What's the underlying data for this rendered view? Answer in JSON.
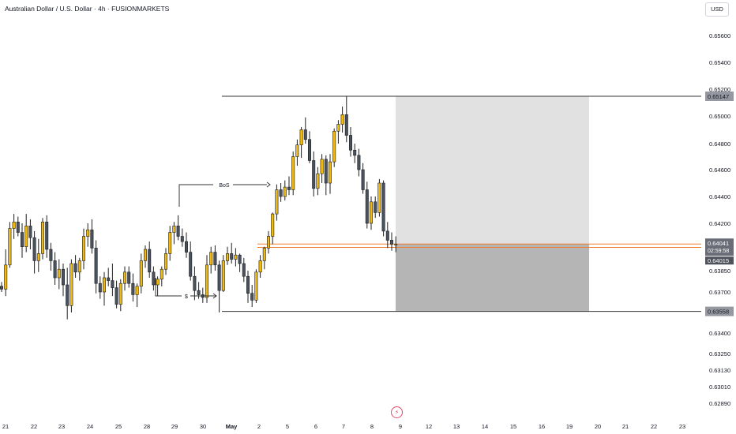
{
  "header": {
    "title": "Australian Dollar / U.S. Dollar · 4h · FUSIONMARKETS",
    "currency": "USD"
  },
  "colors": {
    "up": "#f0b90b",
    "down": "#4a5260",
    "wick": "#1f1f1f",
    "zone_light": "#e1e1e1",
    "zone_dark": "#b5b5b5",
    "orange": "#f07d2e",
    "level": "#333333"
  },
  "icons": {
    "alert": "lightning-bolt-icon"
  },
  "chart_data": {
    "type": "candlestick",
    "title": "Australian Dollar / U.S. Dollar · 4h · FUSIONMARKETS",
    "y_ticks": [
      "0.65600",
      "0.65400",
      "0.65200",
      "0.65000",
      "0.64800",
      "0.64600",
      "0.64400",
      "0.64200",
      "0.64000",
      "0.63850",
      "0.63700",
      "0.63550",
      "0.63400",
      "0.63250",
      "0.63130",
      "0.63010",
      "0.62890"
    ],
    "x_ticks": [
      "21",
      "22",
      "23",
      "24",
      "25",
      "28",
      "29",
      "30",
      "May",
      "2",
      "5",
      "6",
      "7",
      "8",
      "9",
      "12",
      "13",
      "14",
      "15",
      "16",
      "19",
      "20",
      "21",
      "22",
      "23"
    ],
    "price_labels": {
      "high": "0.65147",
      "current": "0.64041",
      "countdown": "02:59:58",
      "mid": "0.64015",
      "low": "0.63558"
    },
    "annotations": {
      "bos": "BoS",
      "sweep": "$"
    },
    "candles": [
      [
        0.6374,
        0.6377,
        0.637,
        0.6372
      ],
      [
        0.6372,
        0.64,
        0.6367,
        0.6389
      ],
      [
        0.6389,
        0.6421,
        0.6387,
        0.6416
      ],
      [
        0.6416,
        0.6427,
        0.6408,
        0.6421
      ],
      [
        0.6421,
        0.6425,
        0.641,
        0.6413
      ],
      [
        0.6413,
        0.642,
        0.6394,
        0.6402
      ],
      [
        0.6402,
        0.6427,
        0.6398,
        0.6418
      ],
      [
        0.6418,
        0.6423,
        0.64,
        0.6409
      ],
      [
        0.6409,
        0.6414,
        0.6383,
        0.6392
      ],
      [
        0.6392,
        0.6408,
        0.6384,
        0.6397
      ],
      [
        0.6397,
        0.6424,
        0.6393,
        0.6421
      ],
      [
        0.6421,
        0.6426,
        0.6394,
        0.64
      ],
      [
        0.64,
        0.6405,
        0.6385,
        0.6392
      ],
      [
        0.6392,
        0.6398,
        0.6375,
        0.638
      ],
      [
        0.638,
        0.6393,
        0.6372,
        0.6386
      ],
      [
        0.6386,
        0.639,
        0.6367,
        0.6375
      ],
      [
        0.6375,
        0.6387,
        0.635,
        0.636
      ],
      [
        0.636,
        0.6393,
        0.6355,
        0.639
      ],
      [
        0.639,
        0.6396,
        0.638,
        0.6384
      ],
      [
        0.6384,
        0.6394,
        0.6378,
        0.6392
      ],
      [
        0.6392,
        0.6416,
        0.6386,
        0.641
      ],
      [
        0.641,
        0.642,
        0.6402,
        0.6415
      ],
      [
        0.6415,
        0.6423,
        0.6397,
        0.6401
      ],
      [
        0.6401,
        0.6407,
        0.6369,
        0.6376
      ],
      [
        0.6376,
        0.6381,
        0.6365,
        0.637
      ],
      [
        0.637,
        0.6384,
        0.636,
        0.638
      ],
      [
        0.638,
        0.6387,
        0.6374,
        0.6378
      ],
      [
        0.6378,
        0.639,
        0.6367,
        0.6373
      ],
      [
        0.6373,
        0.6378,
        0.6358,
        0.6361
      ],
      [
        0.6361,
        0.6379,
        0.6356,
        0.6376
      ],
      [
        0.6376,
        0.6388,
        0.6371,
        0.6384
      ],
      [
        0.6384,
        0.6388,
        0.6373,
        0.6376
      ],
      [
        0.6376,
        0.6383,
        0.6363,
        0.6368
      ],
      [
        0.6368,
        0.6376,
        0.6359,
        0.6374
      ],
      [
        0.6374,
        0.6397,
        0.6369,
        0.6392
      ],
      [
        0.6392,
        0.6403,
        0.6387,
        0.64
      ],
      [
        0.64,
        0.6406,
        0.638,
        0.6384
      ],
      [
        0.6384,
        0.6388,
        0.6371,
        0.6375
      ],
      [
        0.6375,
        0.6381,
        0.6367,
        0.6379
      ],
      [
        0.6379,
        0.6388,
        0.6374,
        0.6386
      ],
      [
        0.6386,
        0.6401,
        0.6382,
        0.6397
      ],
      [
        0.6397,
        0.6418,
        0.6392,
        0.6413
      ],
      [
        0.6413,
        0.6421,
        0.6404,
        0.6418
      ],
      [
        0.6418,
        0.6426,
        0.6407,
        0.641
      ],
      [
        0.641,
        0.6416,
        0.6402,
        0.6406
      ],
      [
        0.6406,
        0.6413,
        0.6394,
        0.6398
      ],
      [
        0.6398,
        0.6406,
        0.6378,
        0.6381
      ],
      [
        0.6381,
        0.6388,
        0.6364,
        0.6371
      ],
      [
        0.6371,
        0.6377,
        0.6365,
        0.6368
      ],
      [
        0.6368,
        0.6373,
        0.6362,
        0.6366
      ],
      [
        0.6366,
        0.6396,
        0.6362,
        0.6389
      ],
      [
        0.6389,
        0.6402,
        0.6383,
        0.6398
      ],
      [
        0.6398,
        0.6403,
        0.6385,
        0.6389
      ],
      [
        0.6389,
        0.6392,
        0.6355,
        0.6371
      ],
      [
        0.6371,
        0.6396,
        0.637,
        0.6392
      ],
      [
        0.6392,
        0.6402,
        0.6389,
        0.6397
      ],
      [
        0.6397,
        0.6405,
        0.639,
        0.6393
      ],
      [
        0.6393,
        0.6401,
        0.6388,
        0.6396
      ],
      [
        0.6396,
        0.6397,
        0.6384,
        0.639
      ],
      [
        0.639,
        0.6394,
        0.6377,
        0.6381
      ],
      [
        0.6381,
        0.6385,
        0.6362,
        0.6369
      ],
      [
        0.6369,
        0.6375,
        0.6359,
        0.6364
      ],
      [
        0.6364,
        0.6386,
        0.6362,
        0.6384
      ],
      [
        0.6384,
        0.6396,
        0.638,
        0.6392
      ],
      [
        0.6392,
        0.6402,
        0.6386,
        0.6401
      ],
      [
        0.6401,
        0.6414,
        0.6397,
        0.641
      ],
      [
        0.641,
        0.6428,
        0.6404,
        0.6427
      ],
      [
        0.6427,
        0.6449,
        0.6422,
        0.6445
      ],
      [
        0.6445,
        0.645,
        0.6436,
        0.644
      ],
      [
        0.644,
        0.6452,
        0.6437,
        0.6447
      ],
      [
        0.6447,
        0.6455,
        0.6441,
        0.6445
      ],
      [
        0.6445,
        0.6474,
        0.6441,
        0.647
      ],
      [
        0.647,
        0.6483,
        0.6463,
        0.6479
      ],
      [
        0.6479,
        0.6492,
        0.6469,
        0.649
      ],
      [
        0.649,
        0.6499,
        0.648,
        0.6483
      ],
      [
        0.6483,
        0.6489,
        0.6465,
        0.6467
      ],
      [
        0.6467,
        0.6474,
        0.644,
        0.6446
      ],
      [
        0.6446,
        0.6462,
        0.6441,
        0.6457
      ],
      [
        0.6457,
        0.6472,
        0.645,
        0.6468
      ],
      [
        0.6468,
        0.6471,
        0.6441,
        0.645
      ],
      [
        0.645,
        0.6472,
        0.6442,
        0.6466
      ],
      [
        0.6466,
        0.6491,
        0.6462,
        0.6489
      ],
      [
        0.6489,
        0.6497,
        0.648,
        0.6494
      ],
      [
        0.6494,
        0.6507,
        0.6488,
        0.6501
      ],
      [
        0.6501,
        0.6515,
        0.6481,
        0.6486
      ],
      [
        0.6486,
        0.6492,
        0.647,
        0.6475
      ],
      [
        0.6475,
        0.648,
        0.6465,
        0.6471
      ],
      [
        0.6471,
        0.6476,
        0.6455,
        0.646
      ],
      [
        0.646,
        0.6465,
        0.6442,
        0.6445
      ],
      [
        0.6445,
        0.6451,
        0.6416,
        0.642
      ],
      [
        0.642,
        0.644,
        0.6415,
        0.6436
      ],
      [
        0.6436,
        0.644,
        0.6424,
        0.6428
      ],
      [
        0.6428,
        0.6453,
        0.6425,
        0.645
      ],
      [
        0.645,
        0.6452,
        0.641,
        0.6414
      ],
      [
        0.6414,
        0.6421,
        0.6401,
        0.6407
      ],
      [
        0.6407,
        0.6413,
        0.6399,
        0.6404
      ],
      [
        0.6404,
        0.641,
        0.6398,
        0.6404
      ]
    ]
  }
}
